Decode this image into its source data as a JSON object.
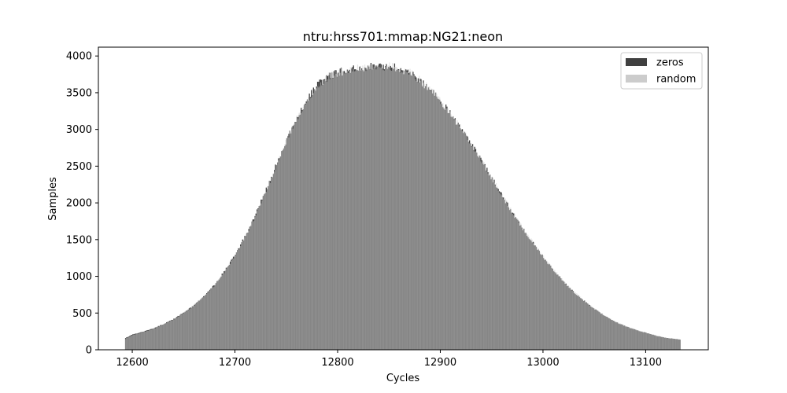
{
  "chart_data": {
    "type": "bar",
    "title": "ntru:hrss701:mmap:NG21:neon",
    "xlabel": "Cycles",
    "ylabel": "Samples",
    "xlim": [
      12567,
      13161
    ],
    "ylim": [
      0,
      4120
    ],
    "x_ticks": [
      12600,
      12700,
      12800,
      12900,
      13000,
      13100
    ],
    "x_tick_labels": [
      "12600",
      "12700",
      "12800",
      "12900",
      "13000",
      "13100"
    ],
    "y_ticks": [
      0,
      500,
      1000,
      1500,
      2000,
      2500,
      3000,
      3500,
      4000
    ],
    "y_tick_labels": [
      "0",
      "500",
      "1000",
      "1500",
      "2000",
      "2500",
      "3000",
      "3500",
      "4000"
    ],
    "grid": false,
    "legend_position": "top-right",
    "bin_width": 1,
    "series": [
      {
        "name": "zeros",
        "color": "#404040",
        "x": [
          12593,
          12600,
          12610,
          12620,
          12630,
          12640,
          12650,
          12660,
          12670,
          12680,
          12690,
          12700,
          12710,
          12720,
          12730,
          12740,
          12750,
          12760,
          12770,
          12780,
          12790,
          12800,
          12810,
          12820,
          12830,
          12840,
          12850,
          12860,
          12870,
          12880,
          12890,
          12900,
          12910,
          12920,
          12930,
          12940,
          12950,
          12960,
          12970,
          12980,
          12990,
          13000,
          13010,
          13020,
          13030,
          13040,
          13050,
          13060,
          13070,
          13080,
          13090,
          13100,
          13110,
          13120,
          13133
        ],
        "values": [
          160,
          210,
          245,
          290,
          350,
          420,
          510,
          610,
          740,
          890,
          1080,
          1300,
          1560,
          1850,
          2180,
          2520,
          2860,
          3170,
          3420,
          3600,
          3720,
          3780,
          3800,
          3830,
          3860,
          3880,
          3870,
          3820,
          3760,
          3660,
          3530,
          3380,
          3200,
          3000,
          2790,
          2570,
          2330,
          2090,
          1860,
          1650,
          1450,
          1260,
          1080,
          920,
          780,
          660,
          550,
          460,
          380,
          320,
          270,
          230,
          190,
          160,
          140
        ]
      },
      {
        "name": "random",
        "color": "#cccccc",
        "x": [
          12593,
          12600,
          12610,
          12620,
          12630,
          12640,
          12650,
          12660,
          12670,
          12680,
          12690,
          12700,
          12710,
          12720,
          12730,
          12740,
          12750,
          12760,
          12770,
          12780,
          12790,
          12800,
          12810,
          12820,
          12830,
          12840,
          12850,
          12860,
          12870,
          12880,
          12890,
          12900,
          12910,
          12920,
          12930,
          12940,
          12950,
          12960,
          12970,
          12980,
          12990,
          13000,
          13010,
          13020,
          13030,
          13040,
          13050,
          13060,
          13070,
          13080,
          13090,
          13100,
          13110,
          13120,
          13133
        ],
        "values": [
          150,
          200,
          240,
          285,
          345,
          415,
          505,
          605,
          735,
          885,
          1075,
          1295,
          1555,
          1840,
          2170,
          2510,
          2850,
          3160,
          3410,
          3595,
          3715,
          3780,
          3810,
          3840,
          3850,
          3860,
          3860,
          3830,
          3770,
          3670,
          3540,
          3390,
          3210,
          3010,
          2800,
          2580,
          2340,
          2100,
          1870,
          1660,
          1460,
          1270,
          1090,
          930,
          790,
          665,
          555,
          465,
          385,
          325,
          275,
          230,
          195,
          160,
          140
        ]
      }
    ]
  }
}
